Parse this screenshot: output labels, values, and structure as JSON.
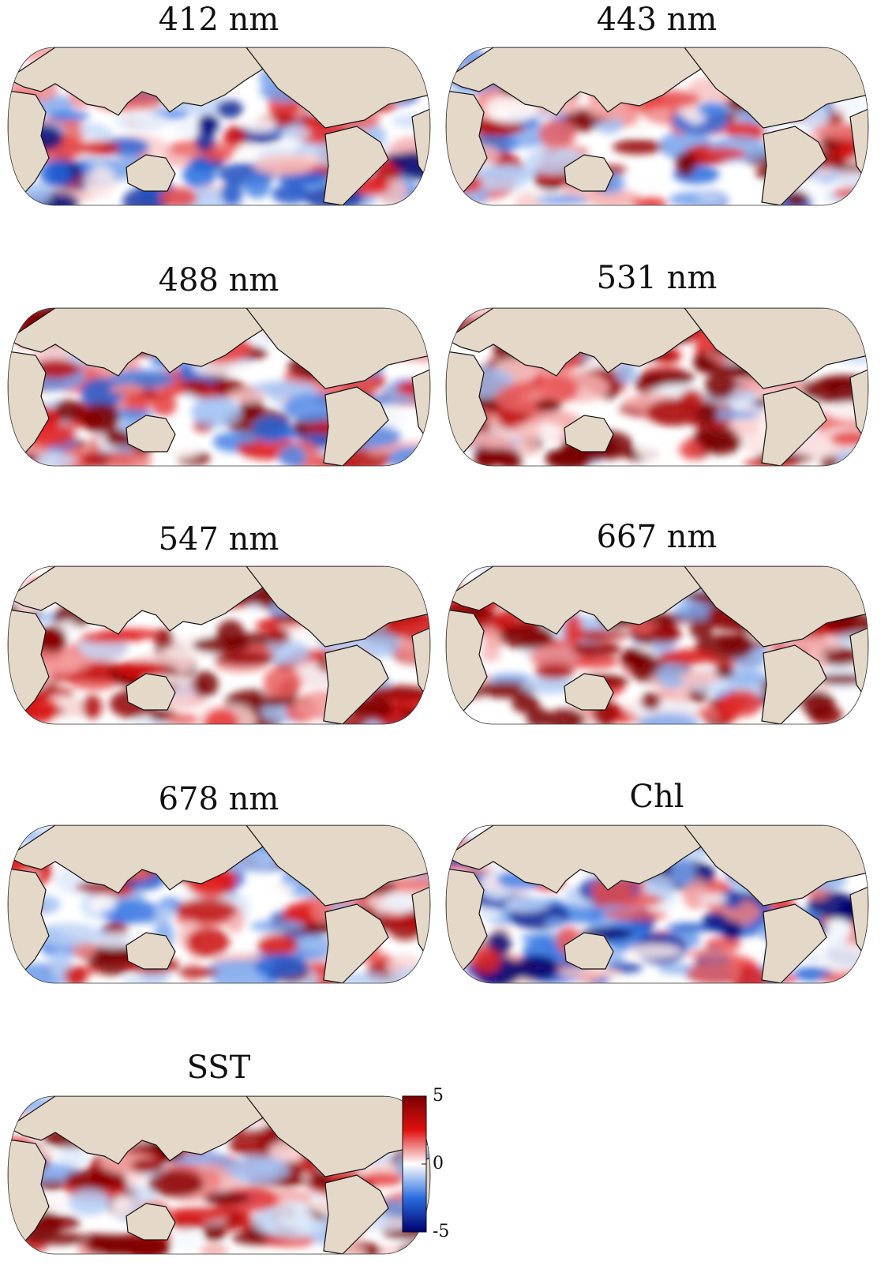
{
  "panels": [
    {
      "title": "412 nm"
    },
    {
      "title": "443 nm"
    },
    {
      "title": "488 nm"
    },
    {
      "title": "531 nm"
    },
    {
      "title": "547 nm"
    },
    {
      "title": "667 nm"
    },
    {
      "title": "678 nm"
    },
    {
      "title": "Chl"
    },
    {
      "title": "SST"
    }
  ],
  "colorbar": {
    "lim": [
      -5,
      5
    ],
    "ticks": [
      -5,
      0,
      5
    ]
  }
}
